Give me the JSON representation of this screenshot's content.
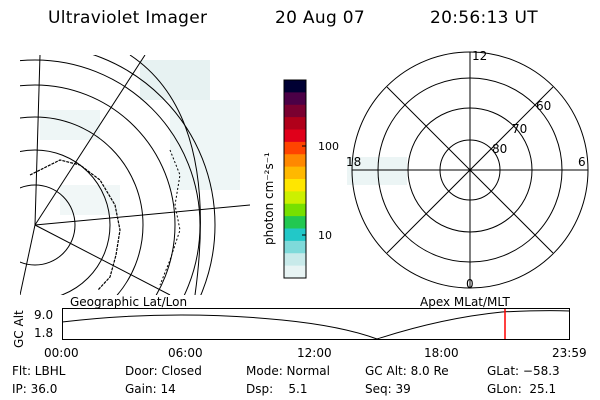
{
  "header": {
    "instrument": "Ultraviolet Imager",
    "date": "20 Aug 07",
    "time": "20:56:13 UT"
  },
  "left_panel": {
    "caption": "Geographic Lat/Lon"
  },
  "right_panel": {
    "caption": "Apex MLat/MLT",
    "mlt_labels": [
      "12",
      "18",
      "6",
      "0"
    ],
    "lat_labels": [
      "60",
      "70",
      "80"
    ]
  },
  "colorbar": {
    "unit_label": "photon cm⁻²s⁻¹",
    "tick_labels": [
      "100",
      "10"
    ],
    "colors": [
      "#000033",
      "#4b0046",
      "#7a0030",
      "#b0001a",
      "#e0001a",
      "#ff4400",
      "#ff8800",
      "#ffb800",
      "#ffe600",
      "#ccf000",
      "#77e000",
      "#22c850",
      "#22c8c8",
      "#7fdada",
      "#c8eaea",
      "#e8f4f4"
    ]
  },
  "altitude_strip": {
    "axis_label": "GC Alt",
    "y_ticks": [
      "9.0",
      "1.8"
    ],
    "x_ticks": [
      "00:00",
      "06:00",
      "12:00",
      "18:00",
      "23:59"
    ],
    "marker_color": "#ff0000"
  },
  "status": {
    "row1": {
      "flt": "Flt: LBHL",
      "door": "Door: Closed",
      "mode": "Mode: Normal",
      "gcalt": "GC Alt: 8.0 Re",
      "glat": "GLat: −58.3"
    },
    "row2": {
      "ip": "IP: 36.0",
      "gain": "Gain: 14",
      "dsp": "Dsp:    5.1",
      "seq": "Seq: 39",
      "glon": "GLon:  25.1"
    }
  }
}
